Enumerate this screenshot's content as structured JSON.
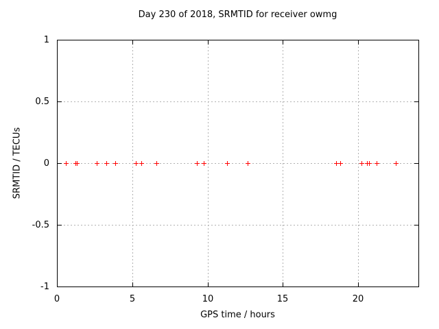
{
  "chart_data": {
    "type": "scatter",
    "title": "Day 230 of 2018, SRMTID for receiver owmg",
    "xlabel": "GPS time / hours",
    "ylabel": "SRMTID / TECUs",
    "xlim": [
      0,
      24
    ],
    "ylim": [
      -1,
      1
    ],
    "xticks": [
      0,
      5,
      10,
      15,
      20
    ],
    "yticks": [
      -1,
      -0.5,
      0,
      0.5,
      1
    ],
    "grid": true,
    "legend": "none",
    "marker": {
      "symbol": "plus",
      "color": "#ff0000",
      "size": 7
    },
    "series": [
      {
        "name": "SRMTID",
        "x": [
          0.6,
          1.25,
          1.3,
          2.65,
          3.3,
          3.85,
          5.25,
          5.6,
          6.6,
          9.3,
          9.75,
          11.3,
          12.65,
          18.55,
          18.8,
          20.2,
          20.6,
          20.7,
          21.2,
          22.5
        ],
        "y": [
          0,
          0,
          0,
          0,
          0,
          0,
          0,
          0,
          0,
          0,
          0,
          0,
          0,
          0,
          0,
          0,
          0,
          0,
          0,
          0
        ]
      }
    ],
    "colors": {
      "grid": "#b0b0b0",
      "axis": "#000000",
      "text": "#000000",
      "background": "#ffffff"
    }
  }
}
